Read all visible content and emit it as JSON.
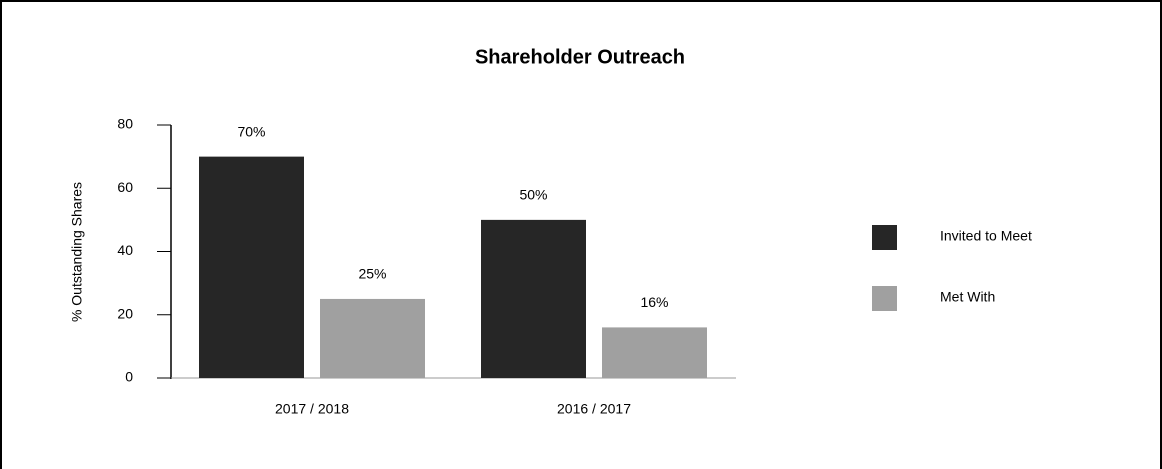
{
  "chart_data": {
    "type": "bar",
    "title": "Shareholder Outreach",
    "ylabel": "% Outstanding Shares",
    "categories": [
      "2017 / 2018",
      "2016 / 2017"
    ],
    "series": [
      {
        "name": "Invited to Meet",
        "color": "#262626",
        "values": [
          70,
          50
        ],
        "value_labels": [
          "70%",
          "50%"
        ]
      },
      {
        "name": "Met With",
        "color": "#a0a0a0",
        "values": [
          25,
          16
        ],
        "value_labels": [
          "25%",
          "16%"
        ]
      }
    ],
    "ylim": [
      0,
      80
    ],
    "yticks": [
      0,
      20,
      40,
      60,
      80
    ],
    "legend": "right"
  }
}
